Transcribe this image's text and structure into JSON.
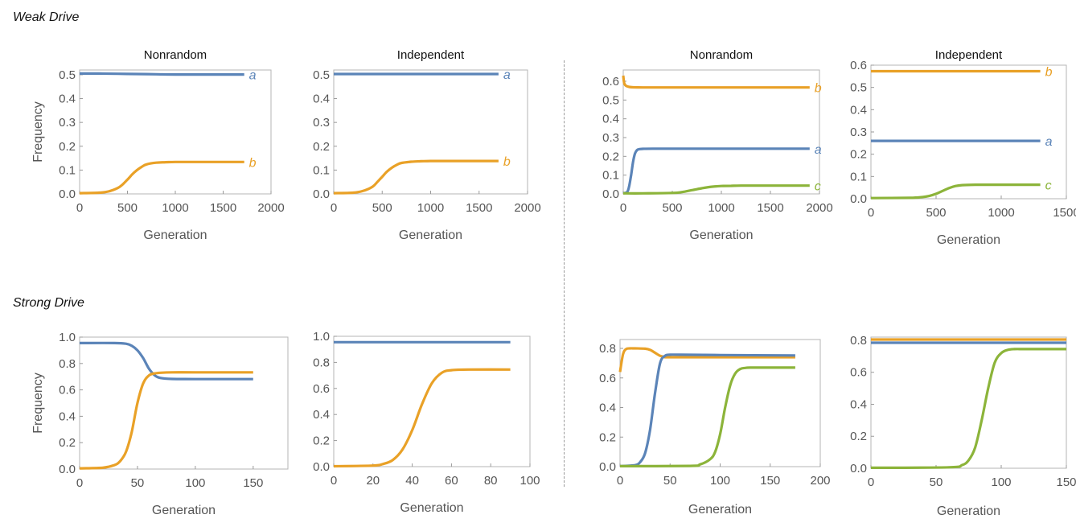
{
  "section_labels": {
    "weak": "Weak Drive",
    "strong": "Strong Drive"
  },
  "colors": {
    "a": "#5b84b8",
    "b": "#e9a127",
    "c": "#8cb43a"
  },
  "chart_data": [
    {
      "type": "line",
      "title": "Nonrandom",
      "xlabel": "Generation",
      "ylabel": "Frequency",
      "xlim": [
        0,
        2000
      ],
      "ylim": [
        0,
        0.52
      ],
      "xticks": [
        0,
        500,
        1000,
        1500,
        2000
      ],
      "yticks": [
        0.0,
        0.1,
        0.2,
        0.3,
        0.4,
        0.5
      ],
      "series": [
        {
          "name": "a",
          "color": "#5b84b8",
          "label": "a",
          "x": [
            0,
            200,
            400,
            600,
            800,
            1000,
            1200,
            1400,
            1600,
            1720
          ],
          "y": [
            0.505,
            0.505,
            0.504,
            0.503,
            0.502,
            0.501,
            0.501,
            0.501,
            0.501,
            0.501
          ]
        },
        {
          "name": "b",
          "color": "#e9a127",
          "label": "b",
          "x": [
            0,
            200,
            300,
            400,
            450,
            500,
            550,
            600,
            650,
            700,
            800,
            900,
            1000,
            1200,
            1400,
            1720
          ],
          "y": [
            0.003,
            0.005,
            0.01,
            0.025,
            0.04,
            0.06,
            0.082,
            0.1,
            0.114,
            0.124,
            0.131,
            0.133,
            0.134,
            0.134,
            0.134,
            0.134
          ]
        }
      ]
    },
    {
      "type": "line",
      "title": "Independent",
      "xlabel": "Generation",
      "ylabel": "",
      "xlim": [
        0,
        2000
      ],
      "ylim": [
        0,
        0.52
      ],
      "xticks": [
        0,
        500,
        1000,
        1500,
        2000
      ],
      "yticks": [
        0.0,
        0.1,
        0.2,
        0.3,
        0.4,
        0.5
      ],
      "series": [
        {
          "name": "a",
          "color": "#5b84b8",
          "label": "a",
          "x": [
            0,
            1700
          ],
          "y": [
            0.503,
            0.503
          ]
        },
        {
          "name": "b",
          "color": "#e9a127",
          "label": "b",
          "x": [
            0,
            200,
            300,
            400,
            450,
            500,
            550,
            600,
            650,
            700,
            800,
            900,
            1000,
            1200,
            1400,
            1700
          ],
          "y": [
            0.003,
            0.005,
            0.012,
            0.03,
            0.05,
            0.072,
            0.094,
            0.11,
            0.122,
            0.13,
            0.135,
            0.137,
            0.138,
            0.138,
            0.138,
            0.138
          ]
        }
      ]
    },
    {
      "type": "line",
      "title": "Nonrandom",
      "xlabel": "Generation",
      "ylabel": "",
      "xlim": [
        0,
        2000
      ],
      "ylim": [
        0,
        0.66
      ],
      "xticks": [
        0,
        500,
        1000,
        1500,
        2000
      ],
      "yticks": [
        0.0,
        0.1,
        0.2,
        0.3,
        0.4,
        0.5,
        0.6
      ],
      "series": [
        {
          "name": "b",
          "color": "#e9a127",
          "label": "b",
          "x": [
            0,
            10,
            30,
            60,
            100,
            200,
            400,
            800,
            1200,
            1600,
            1900
          ],
          "y": [
            0.63,
            0.59,
            0.575,
            0.57,
            0.568,
            0.567,
            0.567,
            0.567,
            0.567,
            0.567,
            0.567
          ]
        },
        {
          "name": "a",
          "color": "#5b84b8",
          "label": "a",
          "x": [
            0,
            40,
            60,
            80,
            100,
            120,
            140,
            160,
            200,
            300,
            600,
            1000,
            1500,
            1900
          ],
          "y": [
            0.003,
            0.01,
            0.04,
            0.1,
            0.17,
            0.215,
            0.233,
            0.238,
            0.24,
            0.241,
            0.241,
            0.241,
            0.241,
            0.241
          ]
        },
        {
          "name": "c",
          "color": "#8cb43a",
          "label": "c",
          "x": [
            0,
            200,
            500,
            600,
            700,
            800,
            900,
            1000,
            1100,
            1200,
            1500,
            1900
          ],
          "y": [
            0.003,
            0.003,
            0.005,
            0.01,
            0.02,
            0.03,
            0.038,
            0.042,
            0.043,
            0.044,
            0.044,
            0.044
          ]
        }
      ]
    },
    {
      "type": "line",
      "title": "Independent",
      "xlabel": "Generation",
      "ylabel": "",
      "xlim": [
        0,
        1500
      ],
      "ylim": [
        0,
        0.6
      ],
      "xticks": [
        0,
        500,
        1000,
        1500
      ],
      "yticks": [
        0.0,
        0.1,
        0.2,
        0.3,
        0.4,
        0.5,
        0.6
      ],
      "series": [
        {
          "name": "b",
          "color": "#e9a127",
          "label": "b",
          "x": [
            0,
            1300
          ],
          "y": [
            0.573,
            0.573
          ]
        },
        {
          "name": "a",
          "color": "#5b84b8",
          "label": "a",
          "x": [
            0,
            1300
          ],
          "y": [
            0.26,
            0.26
          ]
        },
        {
          "name": "c",
          "color": "#8cb43a",
          "label": "c",
          "x": [
            0,
            300,
            400,
            450,
            500,
            550,
            600,
            650,
            700,
            800,
            1000,
            1300
          ],
          "y": [
            0.003,
            0.004,
            0.008,
            0.013,
            0.022,
            0.035,
            0.048,
            0.057,
            0.061,
            0.063,
            0.063,
            0.063
          ]
        }
      ]
    },
    {
      "type": "line",
      "title": "",
      "xlabel": "Generation",
      "ylabel": "Frequency",
      "xlim": [
        0,
        180
      ],
      "ylim": [
        0,
        1.0
      ],
      "xticks": [
        0,
        50,
        100,
        150
      ],
      "yticks": [
        0.0,
        0.2,
        0.4,
        0.6,
        0.8,
        1.0
      ],
      "series": [
        {
          "name": "a",
          "color": "#5b84b8",
          "label": "",
          "x": [
            0,
            30,
            40,
            45,
            50,
            55,
            60,
            65,
            70,
            80,
            100,
            150
          ],
          "y": [
            0.955,
            0.955,
            0.95,
            0.935,
            0.9,
            0.84,
            0.76,
            0.71,
            0.69,
            0.683,
            0.682,
            0.682
          ]
        },
        {
          "name": "b",
          "color": "#e9a127",
          "label": "",
          "x": [
            0,
            20,
            30,
            35,
            40,
            45,
            50,
            55,
            60,
            65,
            70,
            80,
            100,
            150
          ],
          "y": [
            0.005,
            0.01,
            0.03,
            0.06,
            0.13,
            0.28,
            0.5,
            0.65,
            0.71,
            0.725,
            0.73,
            0.733,
            0.733,
            0.733
          ]
        }
      ]
    },
    {
      "type": "line",
      "title": "",
      "xlabel": "Generation",
      "ylabel": "",
      "xlim": [
        0,
        100
      ],
      "ylim": [
        0,
        1.0
      ],
      "xticks": [
        0,
        20,
        40,
        60,
        80,
        100
      ],
      "yticks": [
        0.0,
        0.2,
        0.4,
        0.6,
        0.8,
        1.0
      ],
      "series": [
        {
          "name": "a",
          "color": "#5b84b8",
          "label": "",
          "x": [
            0,
            90
          ],
          "y": [
            0.955,
            0.955
          ]
        },
        {
          "name": "b",
          "color": "#e9a127",
          "label": "",
          "x": [
            0,
            20,
            25,
            30,
            35,
            40,
            45,
            50,
            55,
            60,
            70,
            90
          ],
          "y": [
            0.003,
            0.008,
            0.02,
            0.05,
            0.13,
            0.28,
            0.48,
            0.64,
            0.72,
            0.74,
            0.745,
            0.745
          ]
        }
      ]
    },
    {
      "type": "line",
      "title": "",
      "xlabel": "Generation",
      "ylabel": "",
      "xlim": [
        0,
        200
      ],
      "ylim": [
        0,
        0.86
      ],
      "xticks": [
        0,
        50,
        100,
        150,
        200
      ],
      "yticks": [
        0.0,
        0.2,
        0.4,
        0.6,
        0.8
      ],
      "series": [
        {
          "name": "b",
          "color": "#e9a127",
          "label": "",
          "x": [
            0,
            3,
            6,
            10,
            15,
            25,
            30,
            35,
            40,
            45,
            50,
            100,
            175
          ],
          "y": [
            0.64,
            0.76,
            0.795,
            0.8,
            0.8,
            0.798,
            0.79,
            0.77,
            0.75,
            0.742,
            0.74,
            0.74,
            0.74
          ]
        },
        {
          "name": "a",
          "color": "#5b84b8",
          "label": "",
          "x": [
            0,
            15,
            20,
            25,
            30,
            35,
            40,
            45,
            50,
            60,
            100,
            175
          ],
          "y": [
            0.003,
            0.01,
            0.03,
            0.09,
            0.25,
            0.5,
            0.7,
            0.75,
            0.757,
            0.757,
            0.755,
            0.752
          ]
        },
        {
          "name": "c",
          "color": "#8cb43a",
          "label": "",
          "x": [
            0,
            70,
            80,
            90,
            95,
            100,
            105,
            110,
            115,
            120,
            125,
            130,
            150,
            175
          ],
          "y": [
            0.003,
            0.005,
            0.015,
            0.05,
            0.1,
            0.22,
            0.4,
            0.55,
            0.63,
            0.66,
            0.668,
            0.67,
            0.67,
            0.67
          ]
        }
      ]
    },
    {
      "type": "line",
      "title": "",
      "xlabel": "Generation",
      "ylabel": "",
      "xlim": [
        0,
        150
      ],
      "ylim": [
        0,
        0.82
      ],
      "xticks": [
        0,
        50,
        100,
        150
      ],
      "yticks": [
        0.0,
        0.2,
        0.4,
        0.6,
        0.8
      ],
      "series": [
        {
          "name": "b",
          "color": "#e9a127",
          "label": "",
          "x": [
            0,
            150
          ],
          "y": [
            0.805,
            0.805
          ]
        },
        {
          "name": "a",
          "color": "#5b84b8",
          "label": "",
          "x": [
            0,
            150
          ],
          "y": [
            0.785,
            0.785
          ]
        },
        {
          "name": "c",
          "color": "#8cb43a",
          "label": "",
          "x": [
            0,
            60,
            70,
            75,
            80,
            85,
            90,
            95,
            100,
            105,
            110,
            120,
            150
          ],
          "y": [
            0.003,
            0.006,
            0.02,
            0.05,
            0.13,
            0.3,
            0.5,
            0.66,
            0.72,
            0.74,
            0.745,
            0.745,
            0.745
          ]
        }
      ]
    }
  ]
}
